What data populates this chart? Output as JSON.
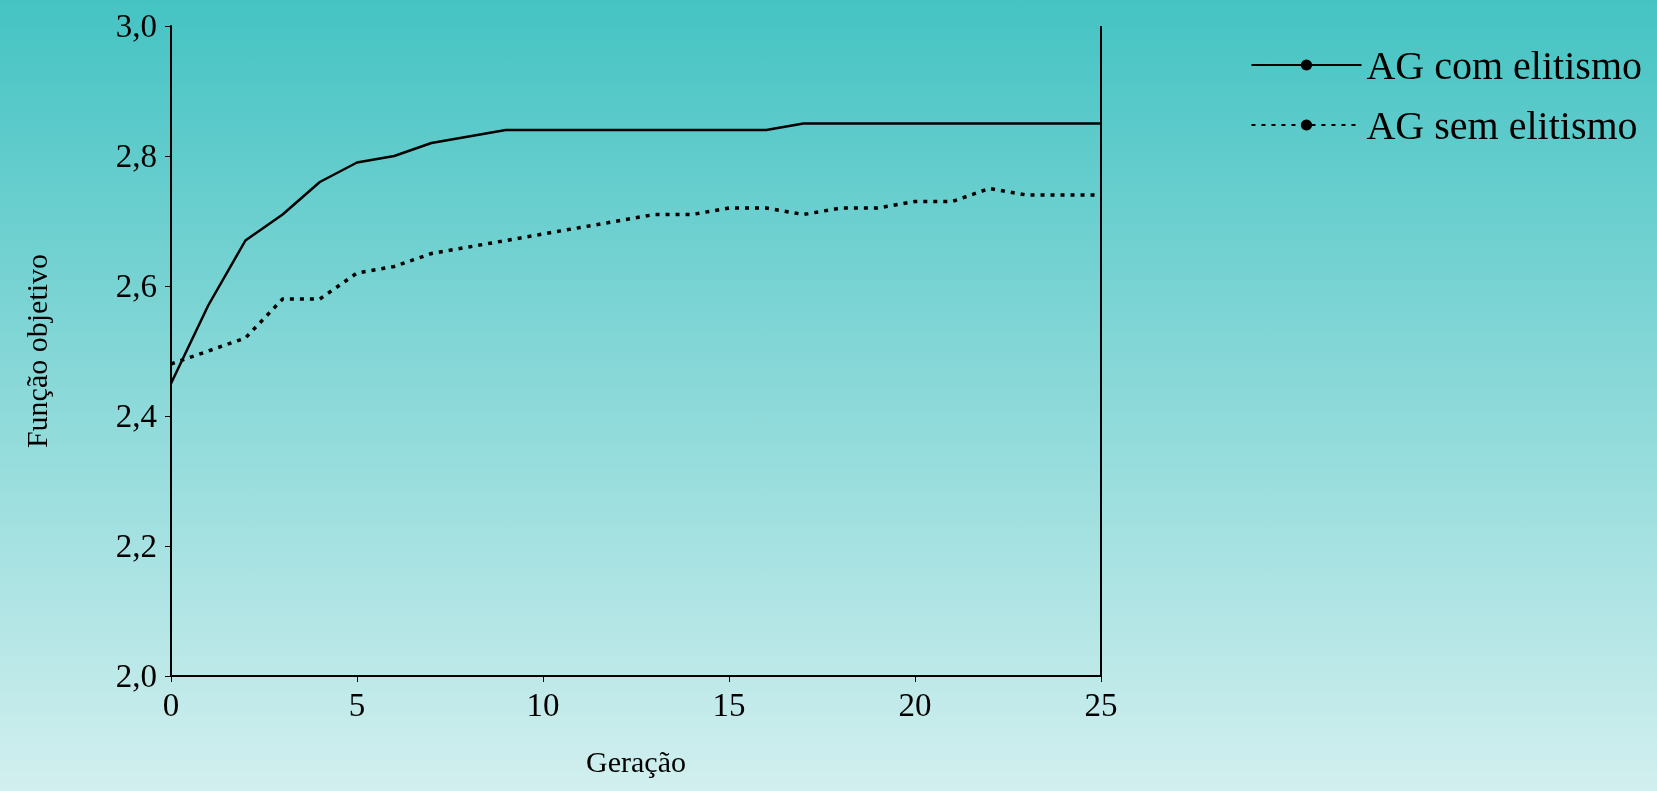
{
  "chart_data": {
    "type": "line",
    "xlabel": "Geração",
    "ylabel": "Função objetivo",
    "x": [
      0,
      1,
      2,
      3,
      4,
      5,
      6,
      7,
      8,
      9,
      10,
      11,
      12,
      13,
      14,
      15,
      16,
      17,
      18,
      19,
      20,
      21,
      22,
      23,
      24,
      25
    ],
    "series": [
      {
        "name": "AG com elitismo",
        "color": "#000000",
        "line_style": "solid",
        "values": [
          2.45,
          2.57,
          2.67,
          2.71,
          2.76,
          2.79,
          2.8,
          2.82,
          2.83,
          2.84,
          2.84,
          2.84,
          2.84,
          2.84,
          2.84,
          2.84,
          2.84,
          2.85,
          2.85,
          2.85,
          2.85,
          2.85,
          2.85,
          2.85,
          2.85,
          2.85
        ]
      },
      {
        "name": "AG sem elitismo",
        "color": "#000000",
        "line_style": "dotted",
        "values": [
          2.48,
          2.5,
          2.52,
          2.58,
          2.58,
          2.62,
          2.63,
          2.65,
          2.66,
          2.67,
          2.68,
          2.69,
          2.7,
          2.71,
          2.71,
          2.72,
          2.72,
          2.71,
          2.72,
          2.72,
          2.73,
          2.73,
          2.75,
          2.74,
          2.74,
          2.74
        ]
      }
    ],
    "xlim": [
      0,
      25
    ],
    "xticks": [
      0,
      5,
      10,
      15,
      20,
      25
    ],
    "ylim": [
      2.0,
      3.0
    ],
    "yticks": [
      {
        "value": 2.0,
        "label": "2,0"
      },
      {
        "value": 2.2,
        "label": "2,2"
      },
      {
        "value": 2.4,
        "label": "2,4"
      },
      {
        "value": 2.6,
        "label": "2,6"
      },
      {
        "value": 2.8,
        "label": "2,8"
      },
      {
        "value": 3.0,
        "label": "3,0"
      }
    ],
    "grid": false,
    "legend": "top right",
    "marker": "none"
  }
}
